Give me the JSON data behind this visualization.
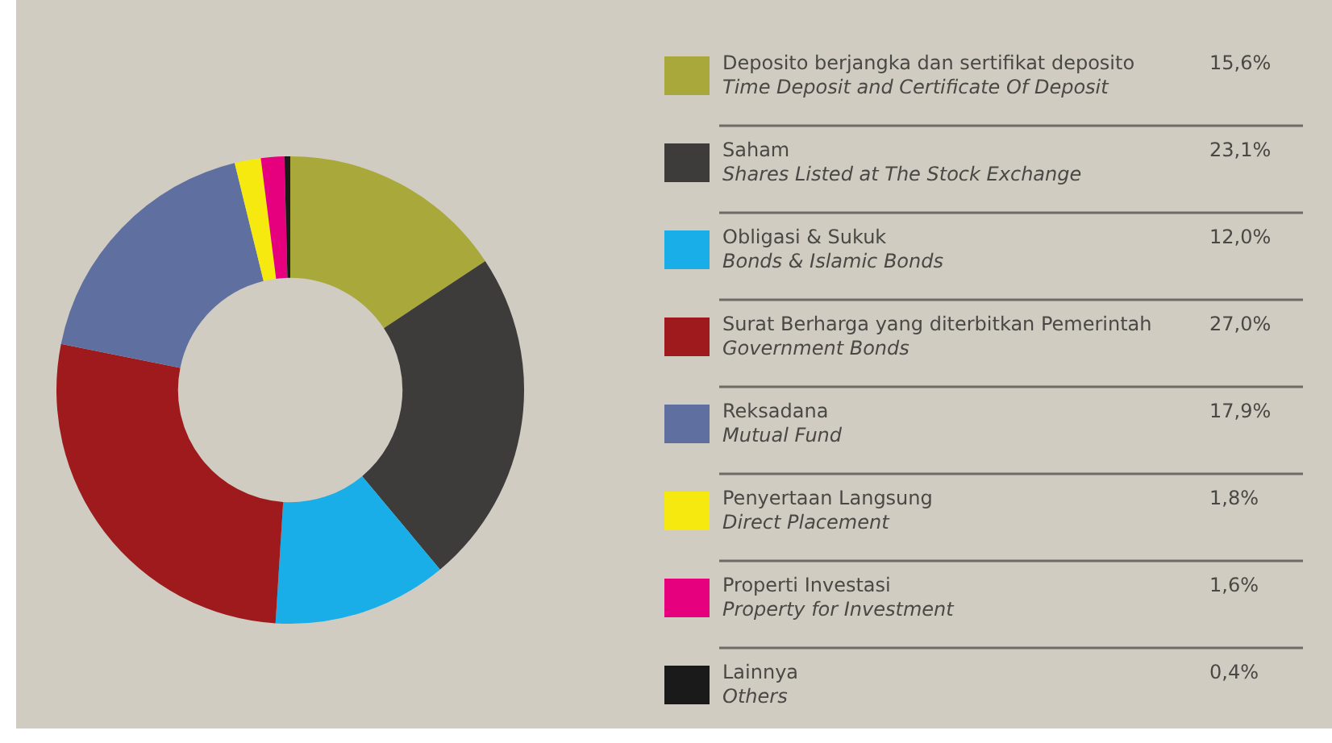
{
  "chart_data": {
    "type": "donut",
    "legend": "right",
    "categories": [
      "Deposito berjangka dan sertifikat deposito\nTime Deposit and Certificate Of Deposit",
      "Saham\nShares Listed at The Stock Exchange",
      "Obligasi & Sukuk\nBonds & Islamic Bonds",
      "Surat Berharga yang diterbitkan Pemerintah\nGovernment Bonds",
      "Reksadana\nMutual Fund",
      "Penyertaan Langsung\nDirect Placement",
      "Properti Investasi\nProperty for Investment",
      "Lainnya\nOthers"
    ],
    "values": [
      15.6,
      23.1,
      12.0,
      27.0,
      17.9,
      1.8,
      1.6,
      0.4
    ],
    "value_labels": [
      "15,6%",
      "23,1%",
      "12,0%",
      "27,0%",
      "17,9%",
      "1,8%",
      "1,6%",
      "0,4%"
    ],
    "colors": [
      "#a9a83a",
      "#3d3c3b",
      "#1aaee8",
      "#9e1a1d",
      "#5f6f9f",
      "#f5e90f",
      "#e6007e",
      "#1a1a1a"
    ]
  }
}
